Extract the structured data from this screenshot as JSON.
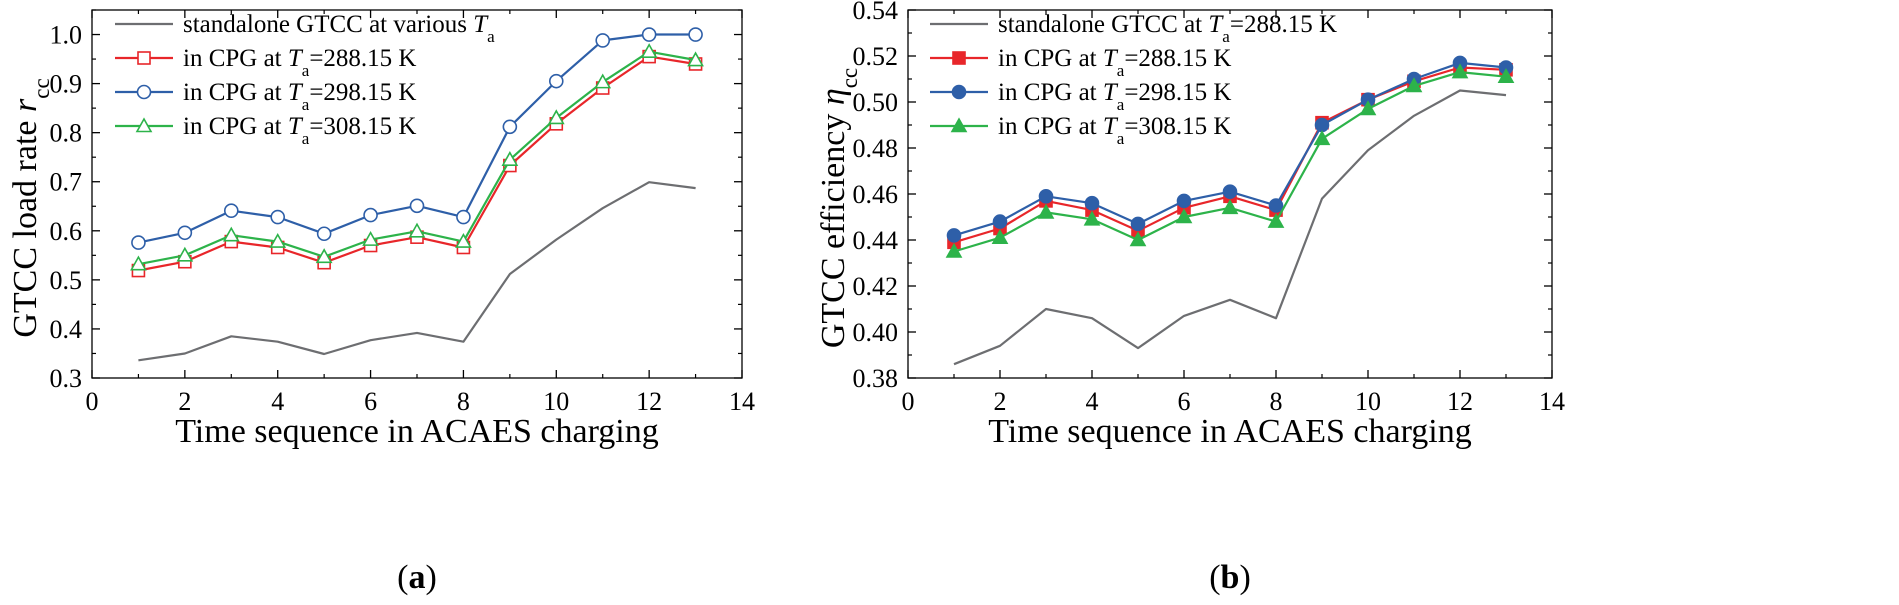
{
  "chart_data": [
    {
      "type": "line",
      "panel_label": "a",
      "xlabel": "Time sequence in ACAES charging",
      "ylabel": "GTCC load rate r_cc",
      "ylabel_parts": {
        "text": "GTCC load rate ",
        "symbol": "r",
        "subscript": "cc"
      },
      "xlim": [
        0,
        14
      ],
      "ylim": [
        0.3,
        1.05
      ],
      "xticks": [
        0,
        2,
        4,
        6,
        8,
        10,
        12,
        14
      ],
      "xtick_labels": [
        "0",
        "2",
        "4",
        "6",
        "8",
        "10",
        "12",
        "14"
      ],
      "yticks": [
        0.3,
        0.4,
        0.5,
        0.6,
        0.7,
        0.8,
        0.9,
        1.0
      ],
      "ytick_labels": [
        "0.3",
        "0.4",
        "0.5",
        "0.6",
        "0.7",
        "0.8",
        "0.9",
        "1.0"
      ],
      "x": [
        1,
        2,
        3,
        4,
        5,
        6,
        7,
        8,
        9,
        10,
        11,
        12,
        13
      ],
      "legend_position": "top-left",
      "series": [
        {
          "name": "standalone GTCC at various T_a",
          "legend_parts": {
            "prefix": "standalone GTCC at various ",
            "symbol": "T",
            "subscript": "a",
            "suffix": ""
          },
          "color": "#6d6e71",
          "marker": "none",
          "filled": false,
          "values": [
            0.336,
            0.35,
            0.385,
            0.374,
            0.349,
            0.377,
            0.392,
            0.374,
            0.512,
            0.582,
            0.646,
            0.699,
            0.687
          ]
        },
        {
          "name": "in CPG at T_a=288.15 K",
          "legend_parts": {
            "prefix": "in CPG at ",
            "symbol": "T",
            "subscript": "a",
            "suffix": "=288.15 K"
          },
          "color": "#e8262a",
          "marker": "square",
          "filled": false,
          "values": [
            0.519,
            0.537,
            0.578,
            0.566,
            0.535,
            0.57,
            0.587,
            0.566,
            0.733,
            0.818,
            0.891,
            0.955,
            0.94
          ]
        },
        {
          "name": "in CPG at T_a=298.15 K",
          "legend_parts": {
            "prefix": "in CPG at ",
            "symbol": "T",
            "subscript": "a",
            "suffix": "=298.15 K"
          },
          "color": "#2e5fa8",
          "marker": "circle",
          "filled": false,
          "values": [
            0.576,
            0.596,
            0.641,
            0.628,
            0.594,
            0.632,
            0.651,
            0.628,
            0.812,
            0.905,
            0.988,
            1.0,
            1.0
          ]
        },
        {
          "name": "in CPG at T_a=308.15 K",
          "legend_parts": {
            "prefix": "in CPG at ",
            "symbol": "T",
            "subscript": "a",
            "suffix": "=308.15 K"
          },
          "color": "#2db34a",
          "marker": "triangle",
          "filled": false,
          "values": [
            0.532,
            0.55,
            0.591,
            0.578,
            0.547,
            0.582,
            0.599,
            0.578,
            0.745,
            0.83,
            0.903,
            0.965,
            0.948
          ]
        }
      ]
    },
    {
      "type": "line",
      "panel_label": "b",
      "xlabel": "Time sequence in ACAES charging",
      "ylabel": "GTCC efficiency η_cc",
      "ylabel_parts": {
        "text": "GTCC efficiency ",
        "symbol": "η",
        "subscript": "cc"
      },
      "xlim": [
        0,
        14
      ],
      "ylim": [
        0.38,
        0.54
      ],
      "xticks": [
        0,
        2,
        4,
        6,
        8,
        10,
        12,
        14
      ],
      "xtick_labels": [
        "0",
        "2",
        "4",
        "6",
        "8",
        "10",
        "12",
        "14"
      ],
      "yticks": [
        0.38,
        0.4,
        0.42,
        0.44,
        0.46,
        0.48,
        0.5,
        0.52,
        0.54
      ],
      "ytick_labels": [
        "0.38",
        "0.40",
        "0.42",
        "0.44",
        "0.46",
        "0.48",
        "0.50",
        "0.52",
        "0.54"
      ],
      "x": [
        1,
        2,
        3,
        4,
        5,
        6,
        7,
        8,
        9,
        10,
        11,
        12,
        13
      ],
      "legend_position": "top-left",
      "series": [
        {
          "name": "standalone GTCC at T_a=288.15 K",
          "legend_parts": {
            "prefix": "standalone GTCC at ",
            "symbol": "T",
            "subscript": "a",
            "suffix": "=288.15 K"
          },
          "color": "#6d6e71",
          "marker": "none",
          "filled": true,
          "values": [
            0.386,
            0.394,
            0.41,
            0.406,
            0.393,
            0.407,
            0.414,
            0.406,
            0.458,
            0.479,
            0.494,
            0.505,
            0.503
          ]
        },
        {
          "name": "in CPG at T_a=288.15 K",
          "legend_parts": {
            "prefix": "in CPG at ",
            "symbol": "T",
            "subscript": "a",
            "suffix": "=288.15 K"
          },
          "color": "#e8262a",
          "marker": "square",
          "filled": true,
          "values": [
            0.439,
            0.445,
            0.457,
            0.453,
            0.444,
            0.454,
            0.459,
            0.453,
            0.491,
            0.501,
            0.509,
            0.515,
            0.514
          ]
        },
        {
          "name": "in CPG at T_a=298.15 K",
          "legend_parts": {
            "prefix": "in CPG at ",
            "symbol": "T",
            "subscript": "a",
            "suffix": "=298.15 K"
          },
          "color": "#2e5fa8",
          "marker": "circle",
          "filled": true,
          "values": [
            0.442,
            0.448,
            0.459,
            0.456,
            0.447,
            0.457,
            0.461,
            0.455,
            0.49,
            0.501,
            0.51,
            0.517,
            0.515
          ]
        },
        {
          "name": "in CPG at T_a=308.15 K",
          "legend_parts": {
            "prefix": "in CPG at ",
            "symbol": "T",
            "subscript": "a",
            "suffix": "=308.15 K"
          },
          "color": "#2db34a",
          "marker": "triangle",
          "filled": true,
          "values": [
            0.435,
            0.441,
            0.452,
            0.449,
            0.44,
            0.45,
            0.454,
            0.448,
            0.484,
            0.497,
            0.507,
            0.513,
            0.511
          ]
        }
      ]
    }
  ]
}
